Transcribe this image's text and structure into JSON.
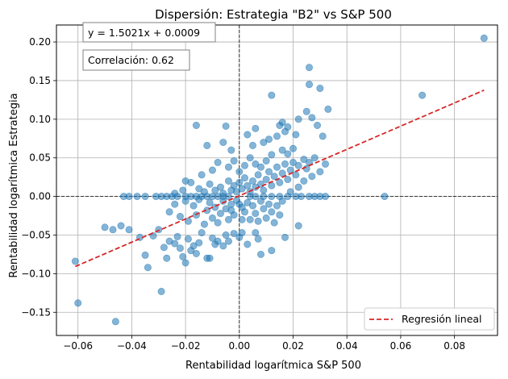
{
  "chart_data": {
    "type": "scatter",
    "title": "Dispersión: Estrategia \"B2\" vs S&P 500",
    "xlabel": "Rentabilidad logarítmica S&P 500",
    "ylabel": "Rentabilidad logarítmica Estrategia",
    "xlim": [
      -0.068,
      0.096
    ],
    "ylim": [
      -0.18,
      0.222
    ],
    "xticks": [
      -0.06,
      -0.04,
      -0.02,
      0.0,
      0.02,
      0.04,
      0.06,
      0.08
    ],
    "xtick_labels": [
      "−0.06",
      "−0.04",
      "−0.02",
      "0.00",
      "0.02",
      "0.04",
      "0.06",
      "0.08"
    ],
    "yticks": [
      -0.15,
      -0.1,
      -0.05,
      0.0,
      0.05,
      0.1,
      0.15,
      0.2
    ],
    "ytick_labels": [
      "−0.15",
      "−0.10",
      "−0.05",
      "0.00",
      "0.05",
      "0.10",
      "0.15",
      "0.20"
    ],
    "grid": true,
    "reference_lines": {
      "x": 0,
      "y": 0
    },
    "annotations": {
      "equation": "y = 1.5021x + 0.0009",
      "correlation": "Correlación: 0.62"
    },
    "regression": {
      "slope": 1.5021,
      "intercept": 0.0009,
      "x_range": [
        -0.061,
        0.091
      ]
    },
    "legend": {
      "label": "Regresión lineal",
      "position": "lower right"
    },
    "colors": {
      "points": "#1f77b4",
      "regression": "#d62728"
    },
    "series": [
      {
        "points": [
          [
            -0.061,
            -0.084
          ],
          [
            -0.06,
            -0.138
          ],
          [
            -0.046,
            -0.162
          ],
          [
            -0.05,
            -0.04
          ],
          [
            -0.047,
            -0.043
          ],
          [
            -0.044,
            -0.038
          ],
          [
            -0.041,
            -0.043
          ],
          [
            -0.037,
            -0.053
          ],
          [
            -0.035,
            -0.076
          ],
          [
            -0.034,
            -0.092
          ],
          [
            -0.032,
            -0.051
          ],
          [
            -0.03,
            -0.043
          ],
          [
            -0.029,
            -0.123
          ],
          [
            -0.028,
            -0.066
          ],
          [
            -0.027,
            -0.08
          ],
          [
            -0.026,
            -0.058
          ],
          [
            -0.024,
            -0.061
          ],
          [
            -0.023,
            -0.052
          ],
          [
            -0.022,
            -0.067
          ],
          [
            -0.021,
            -0.078
          ],
          [
            -0.02,
            -0.086
          ],
          [
            -0.019,
            -0.055
          ],
          [
            -0.018,
            -0.07
          ],
          [
            -0.017,
            -0.064
          ],
          [
            -0.016,
            -0.074
          ],
          [
            -0.015,
            -0.06
          ],
          [
            -0.014,
            -0.047
          ],
          [
            -0.012,
            -0.08
          ],
          [
            -0.011,
            -0.08
          ],
          [
            -0.01,
            -0.054
          ],
          [
            -0.009,
            -0.062
          ],
          [
            -0.008,
            -0.058
          ],
          [
            -0.006,
            -0.064
          ],
          [
            -0.005,
            -0.05
          ],
          [
            -0.004,
            -0.058
          ],
          [
            -0.002,
            -0.048
          ],
          [
            0.0,
            -0.053
          ],
          [
            0.001,
            -0.047
          ],
          [
            0.003,
            -0.062
          ],
          [
            0.007,
            -0.055
          ],
          [
            0.008,
            -0.075
          ],
          [
            0.012,
            -0.07
          ],
          [
            0.017,
            -0.053
          ],
          [
            0.022,
            -0.038
          ],
          [
            0.006,
            -0.047
          ],
          [
            -0.043,
            0.0
          ],
          [
            -0.041,
            0.0
          ],
          [
            -0.038,
            0.0
          ],
          [
            -0.035,
            0.0
          ],
          [
            -0.031,
            0.0
          ],
          [
            -0.029,
            0.0
          ],
          [
            -0.027,
            0.0
          ],
          [
            -0.025,
            0.0
          ],
          [
            -0.023,
            0.0
          ],
          [
            -0.02,
            0.0
          ],
          [
            -0.018,
            0.0
          ],
          [
            -0.016,
            0.0
          ],
          [
            -0.014,
            0.0
          ],
          [
            -0.012,
            0.0
          ],
          [
            -0.01,
            0.0
          ],
          [
            -0.008,
            0.0
          ],
          [
            -0.006,
            0.0
          ],
          [
            -0.004,
            0.0
          ],
          [
            0.004,
            0.0
          ],
          [
            0.006,
            0.0
          ],
          [
            0.009,
            0.0
          ],
          [
            0.012,
            0.0
          ],
          [
            0.015,
            0.0
          ],
          [
            0.018,
            0.0
          ],
          [
            0.021,
            0.0
          ],
          [
            0.023,
            0.0
          ],
          [
            0.026,
            0.0
          ],
          [
            0.028,
            0.0
          ],
          [
            0.03,
            0.0
          ],
          [
            0.032,
            0.0
          ],
          [
            0.054,
            0.0
          ],
          [
            -0.026,
            -0.02
          ],
          [
            -0.022,
            -0.026
          ],
          [
            -0.019,
            -0.032
          ],
          [
            -0.016,
            -0.024
          ],
          [
            -0.013,
            -0.036
          ],
          [
            -0.012,
            -0.018
          ],
          [
            -0.01,
            -0.028
          ],
          [
            -0.008,
            -0.034
          ],
          [
            -0.007,
            -0.022
          ],
          [
            -0.005,
            -0.016
          ],
          [
            -0.004,
            -0.03
          ],
          [
            -0.003,
            -0.01
          ],
          [
            -0.002,
            -0.024
          ],
          [
            -0.001,
            -0.005
          ],
          [
            0.001,
            -0.014
          ],
          [
            0.002,
            -0.02
          ],
          [
            0.003,
            -0.008
          ],
          [
            0.004,
            -0.03
          ],
          [
            0.005,
            -0.012
          ],
          [
            0.006,
            -0.022
          ],
          [
            0.008,
            -0.006
          ],
          [
            0.009,
            -0.016
          ],
          [
            0.01,
            -0.028
          ],
          [
            0.011,
            -0.01
          ],
          [
            0.012,
            -0.02
          ],
          [
            0.014,
            -0.012
          ],
          [
            0.015,
            -0.024
          ],
          [
            0.016,
            -0.006
          ],
          [
            -0.024,
            -0.01
          ],
          [
            -0.02,
            -0.006
          ],
          [
            -0.017,
            -0.012
          ],
          [
            -0.015,
            -0.004
          ],
          [
            -0.011,
            -0.008
          ],
          [
            -0.009,
            -0.014
          ],
          [
            -0.006,
            -0.006
          ],
          [
            -0.003,
            -0.018
          ],
          [
            0.0,
            -0.01
          ],
          [
            0.001,
            -0.03
          ],
          [
            0.007,
            -0.032
          ],
          [
            0.013,
            -0.034
          ],
          [
            -0.018,
            0.018
          ],
          [
            -0.015,
            0.01
          ],
          [
            -0.013,
            0.006
          ],
          [
            -0.011,
            0.016
          ],
          [
            -0.009,
            0.008
          ],
          [
            -0.007,
            0.012
          ],
          [
            -0.006,
            0.004
          ],
          [
            -0.004,
            0.02
          ],
          [
            -0.003,
            0.008
          ],
          [
            -0.002,
            0.014
          ],
          [
            -0.001,
            0.006
          ],
          [
            0.0,
            0.018
          ],
          [
            0.001,
            0.01
          ],
          [
            0.002,
            0.024
          ],
          [
            0.003,
            0.014
          ],
          [
            0.004,
            0.006
          ],
          [
            0.005,
            0.02
          ],
          [
            0.006,
            0.012
          ],
          [
            0.007,
            0.028
          ],
          [
            0.008,
            0.016
          ],
          [
            0.009,
            0.008
          ],
          [
            0.01,
            0.022
          ],
          [
            0.011,
            0.032
          ],
          [
            0.012,
            0.014
          ],
          [
            0.013,
            0.026
          ],
          [
            0.014,
            0.038
          ],
          [
            0.015,
            0.018
          ],
          [
            0.016,
            0.03
          ],
          [
            0.017,
            0.042
          ],
          [
            0.018,
            0.022
          ],
          [
            0.019,
            0.034
          ],
          [
            0.02,
            0.044
          ],
          [
            0.021,
            0.028
          ],
          [
            0.022,
            0.04
          ],
          [
            0.024,
            0.048
          ],
          [
            0.025,
            0.036
          ],
          [
            0.026,
            0.044
          ],
          [
            0.028,
            0.05
          ],
          [
            -0.004,
            0.038
          ],
          [
            -0.002,
            0.046
          ],
          [
            0.0,
            0.032
          ],
          [
            0.002,
            0.04
          ],
          [
            0.004,
            0.05
          ],
          [
            0.006,
            0.042
          ],
          [
            0.008,
            0.038
          ],
          [
            0.01,
            0.046
          ],
          [
            0.012,
            0.054
          ],
          [
            0.016,
            0.06
          ],
          [
            0.018,
            0.055
          ],
          [
            0.02,
            0.062
          ],
          [
            -0.003,
            0.06
          ],
          [
            0.005,
            0.066
          ],
          [
            0.009,
            0.07
          ],
          [
            0.011,
            0.074
          ],
          [
            0.014,
            0.078
          ],
          [
            0.017,
            0.084
          ],
          [
            -0.006,
            0.07
          ],
          [
            -0.012,
            0.066
          ],
          [
            0.003,
            0.08
          ],
          [
            -0.008,
            0.044
          ],
          [
            -0.016,
            0.092
          ],
          [
            -0.005,
            0.091
          ],
          [
            0.006,
            0.088
          ],
          [
            0.015,
            0.092
          ],
          [
            0.016,
            0.096
          ],
          [
            0.018,
            0.09
          ],
          [
            0.021,
            0.08
          ],
          [
            0.022,
            0.1
          ],
          [
            0.025,
            0.11
          ],
          [
            0.027,
            0.102
          ],
          [
            0.029,
            0.092
          ],
          [
            0.031,
            0.078
          ],
          [
            0.032,
            0.042
          ],
          [
            0.033,
            0.113
          ],
          [
            0.03,
            0.14
          ],
          [
            0.026,
            0.145
          ],
          [
            0.026,
            0.167
          ],
          [
            0.012,
            0.131
          ],
          [
            0.091,
            0.205
          ],
          [
            0.068,
            0.131
          ],
          [
            -0.02,
            0.02
          ],
          [
            -0.021,
            0.008
          ],
          [
            -0.024,
            0.004
          ],
          [
            -0.014,
            0.028
          ],
          [
            -0.01,
            0.034
          ],
          [
            0.022,
            0.012
          ],
          [
            0.024,
            0.02
          ],
          [
            0.027,
            0.026
          ],
          [
            0.03,
            0.032
          ],
          [
            0.019,
            0.006
          ]
        ]
      }
    ]
  }
}
